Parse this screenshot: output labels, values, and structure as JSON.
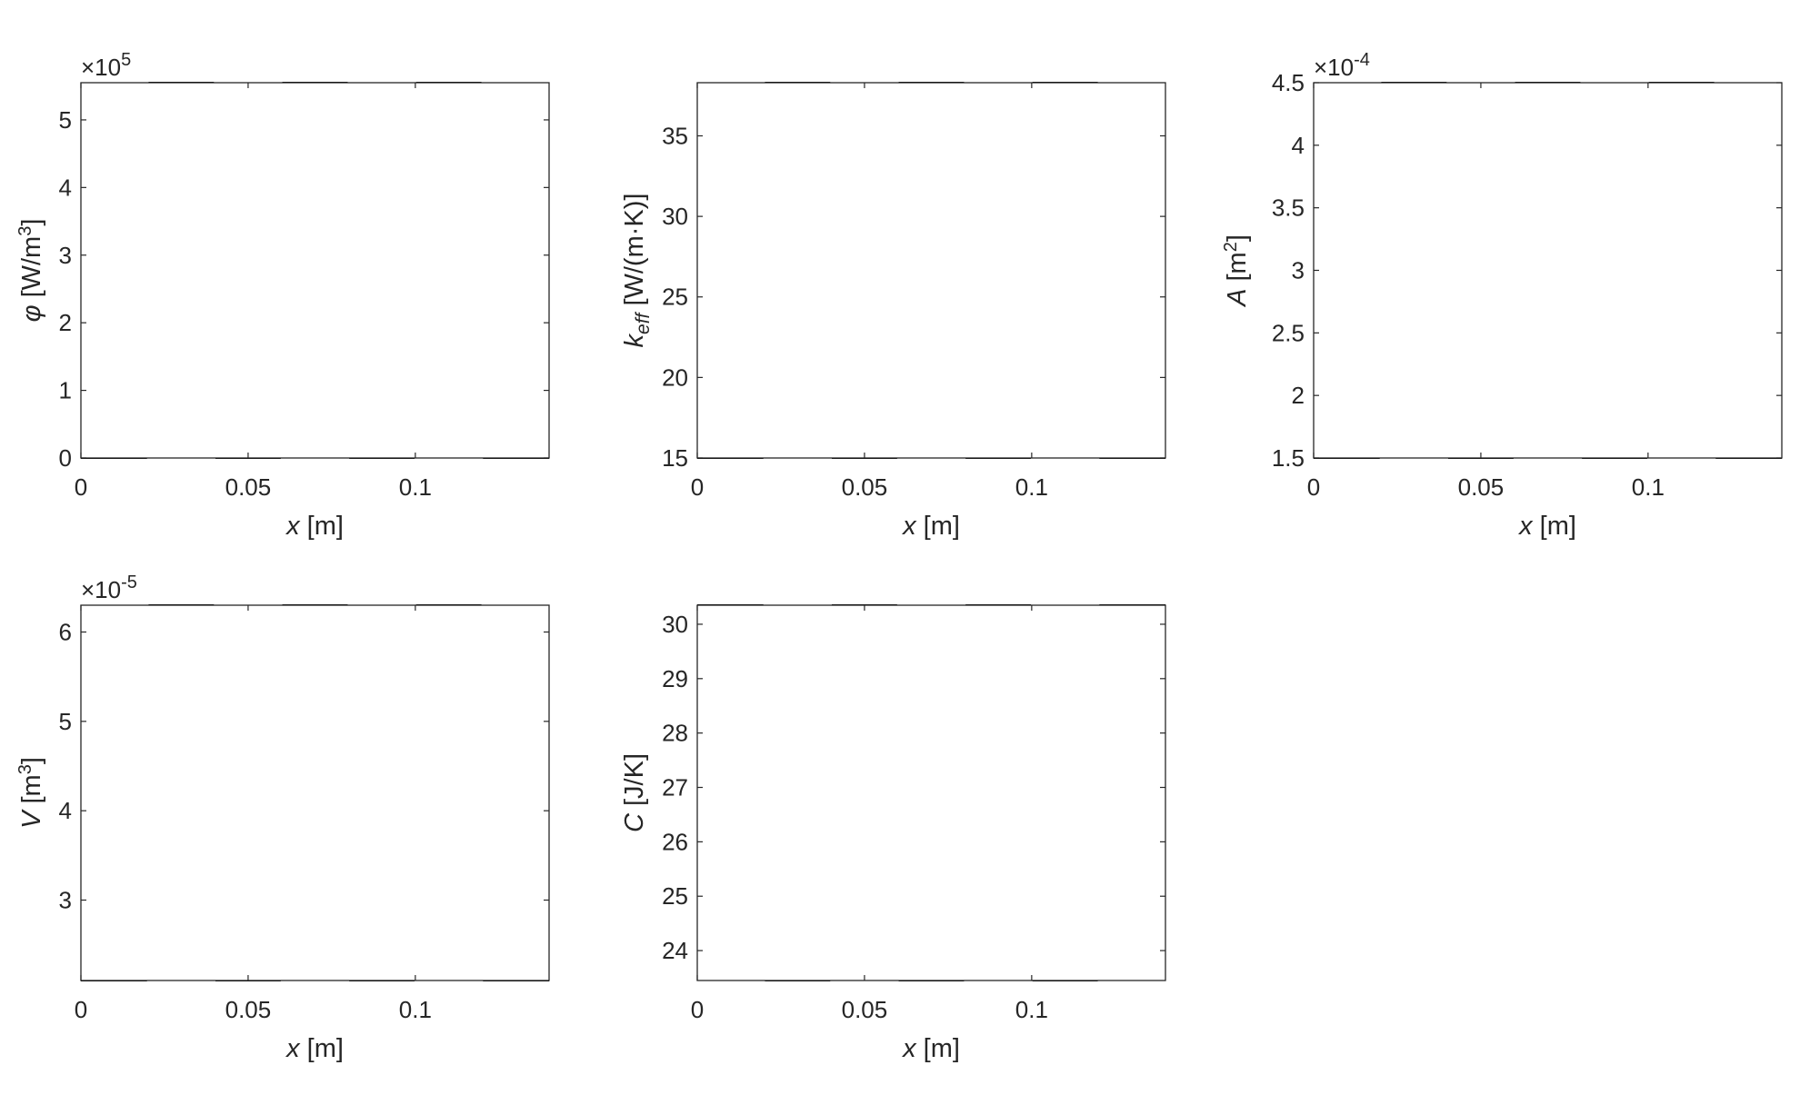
{
  "chart_data": [
    {
      "type": "line",
      "xlabel": {
        "var": "x",
        "unit": " [m]"
      },
      "ylabel": {
        "var": "φ",
        "sub": "",
        "unit_pre": " [W/m",
        "unit_sup": "3",
        "unit_post": "]"
      },
      "xlim": [
        0,
        0.14
      ],
      "ylim": [
        0,
        5.55
      ],
      "xticks": [
        0,
        0.05,
        0.1
      ],
      "xtick_labels": [
        "0",
        "0.05",
        "0.1"
      ],
      "yticks": [
        0,
        1,
        2,
        3,
        4,
        5
      ],
      "ytick_labels": [
        "0",
        "1",
        "2",
        "3",
        "4",
        "5"
      ],
      "exponent_label": {
        "base": "×10",
        "power": "5"
      },
      "grid": true,
      "minor_grid": true,
      "series": [
        {
          "x": [
            0,
            0.0195,
            0.0205,
            0.0395,
            0.0405,
            0.0595,
            0.0605,
            0.0795,
            0.0805,
            0.0995,
            0.1005,
            0.1195,
            0.1205,
            0.14
          ],
          "y": [
            0,
            0,
            5.55,
            5.55,
            0,
            0,
            5.55,
            5.55,
            0,
            0,
            5.55,
            5.55,
            0,
            0
          ]
        }
      ]
    },
    {
      "type": "line",
      "xlabel": {
        "var": "x",
        "unit": " [m]"
      },
      "ylabel": {
        "var": "k",
        "sub": "eff",
        "unit_pre": " [W/(m·K)]",
        "unit_sup": "",
        "unit_post": ""
      },
      "xlim": [
        0,
        0.14
      ],
      "ylim": [
        15,
        38.3
      ],
      "xticks": [
        0,
        0.05,
        0.1
      ],
      "xtick_labels": [
        "0",
        "0.05",
        "0.1"
      ],
      "yticks": [
        15,
        20,
        25,
        30,
        35
      ],
      "ytick_labels": [
        "15",
        "20",
        "25",
        "30",
        "35"
      ],
      "exponent_label": null,
      "grid": true,
      "minor_grid": true,
      "series": [
        {
          "x": [
            0,
            0.0195,
            0.0205,
            0.0395,
            0.0405,
            0.0595,
            0.0605,
            0.0795,
            0.0805,
            0.0995,
            0.1005,
            0.1195,
            0.1205,
            0.14
          ],
          "y": [
            15,
            15,
            38.3,
            38.3,
            15,
            15,
            38.3,
            38.3,
            15,
            15,
            38.3,
            38.3,
            15,
            15
          ]
        }
      ]
    },
    {
      "type": "line",
      "xlabel": {
        "var": "x",
        "unit": " [m]"
      },
      "ylabel": {
        "var": "A",
        "sub": "",
        "unit_pre": " [m",
        "unit_sup": "2",
        "unit_post": "]"
      },
      "xlim": [
        0,
        0.14
      ],
      "ylim": [
        1.5,
        4.5
      ],
      "xticks": [
        0,
        0.05,
        0.1
      ],
      "xtick_labels": [
        "0",
        "0.05",
        "0.1"
      ],
      "yticks": [
        1.5,
        2,
        2.5,
        3,
        3.5,
        4,
        4.5
      ],
      "ytick_labels": [
        "1.5",
        "2",
        "2.5",
        "3",
        "3.5",
        "4",
        "4.5"
      ],
      "exponent_label": {
        "base": "×10",
        "power": "-4"
      },
      "grid": true,
      "minor_grid": true,
      "series": [
        {
          "x": [
            0,
            0.0195,
            0.0205,
            0.0395,
            0.0405,
            0.0595,
            0.0605,
            0.0795,
            0.0805,
            0.0995,
            0.1005,
            0.1195,
            0.1205,
            0.14
          ],
          "y": [
            1.5,
            1.5,
            4.5,
            4.5,
            1.5,
            1.5,
            4.5,
            4.5,
            1.5,
            1.5,
            4.5,
            4.5,
            1.5,
            1.5
          ]
        }
      ]
    },
    {
      "type": "line",
      "xlabel": {
        "var": "x",
        "unit": " [m]"
      },
      "ylabel": {
        "var": "V",
        "sub": "",
        "unit_pre": " [m",
        "unit_sup": "3",
        "unit_post": "]"
      },
      "xlim": [
        0,
        0.14
      ],
      "ylim": [
        2.1,
        6.3
      ],
      "xticks": [
        0,
        0.05,
        0.1
      ],
      "xtick_labels": [
        "0",
        "0.05",
        "0.1"
      ],
      "yticks": [
        3,
        4,
        5,
        6
      ],
      "ytick_labels": [
        "3",
        "4",
        "5",
        "6"
      ],
      "exponent_label": {
        "base": "×10",
        "power": "-5"
      },
      "grid": true,
      "minor_grid": true,
      "series": [
        {
          "x": [
            0,
            0.0195,
            0.0205,
            0.0395,
            0.0405,
            0.0595,
            0.0605,
            0.0795,
            0.0805,
            0.0995,
            0.1005,
            0.1195,
            0.1205,
            0.14
          ],
          "y": [
            2.1,
            2.1,
            6.3,
            6.3,
            2.1,
            2.1,
            6.3,
            6.3,
            2.1,
            2.1,
            6.3,
            6.3,
            2.1,
            2.1
          ]
        }
      ]
    },
    {
      "type": "line",
      "xlabel": {
        "var": "x",
        "unit": " [m]"
      },
      "ylabel": {
        "var": "C",
        "sub": "",
        "unit_pre": " [J/K]",
        "unit_sup": "",
        "unit_post": ""
      },
      "xlim": [
        0,
        0.14
      ],
      "ylim": [
        23.45,
        30.35
      ],
      "xticks": [
        0,
        0.05,
        0.1
      ],
      "xtick_labels": [
        "0",
        "0.05",
        "0.1"
      ],
      "yticks": [
        24,
        25,
        26,
        27,
        28,
        29,
        30
      ],
      "ytick_labels": [
        "24",
        "25",
        "26",
        "27",
        "28",
        "29",
        "30"
      ],
      "exponent_label": null,
      "grid": true,
      "minor_grid": true,
      "series": [
        {
          "x": [
            0,
            0.0195,
            0.0205,
            0.0395,
            0.0405,
            0.0595,
            0.0605,
            0.0795,
            0.0805,
            0.0995,
            0.1005,
            0.1195,
            0.1205,
            0.14
          ],
          "y": [
            30.35,
            30.35,
            23.45,
            23.45,
            30.35,
            30.35,
            23.45,
            23.45,
            30.35,
            30.35,
            23.45,
            23.45,
            30.35,
            30.35
          ]
        }
      ]
    }
  ]
}
